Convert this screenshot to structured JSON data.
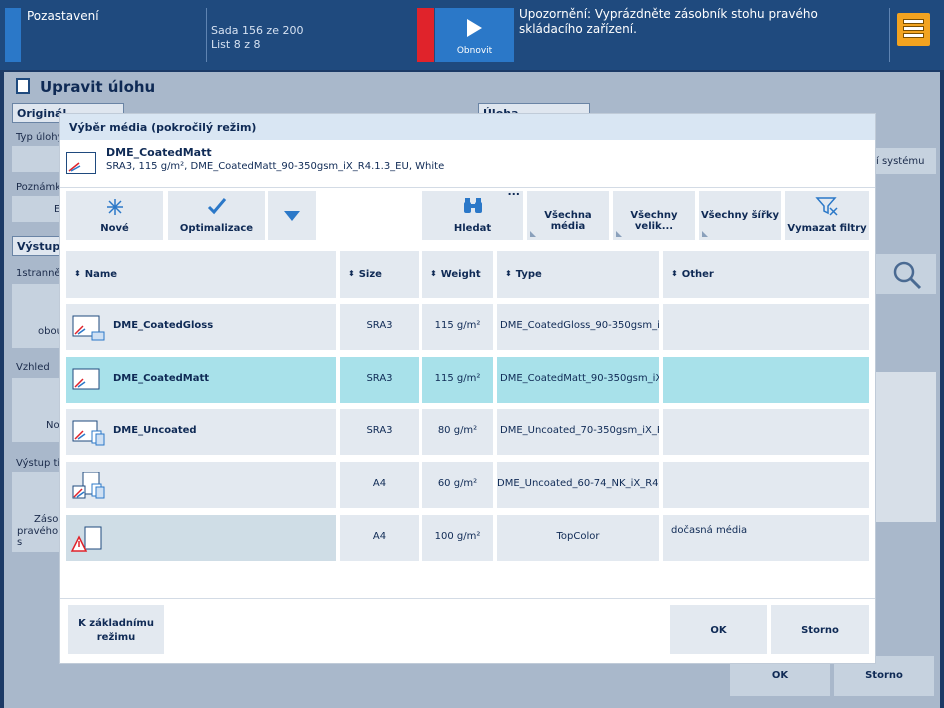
{
  "topbar": {
    "title": "Pozastavení",
    "set_line": "Sada 156 ze 200",
    "sheet_line": "List 8 z 8",
    "resume_label": "Obnovit",
    "warning": "Upozornění: Vyprázdněte zásobník stohu pravého skládacího zařízení."
  },
  "background": {
    "title": "Upravit úlohu",
    "tab_original": "Originál",
    "tab_job": "Úloha",
    "label_type": "Typ úlohy",
    "label_note": "Poznámka",
    "label_e": "E",
    "label_system": "í systému",
    "tab_output": "Výstup",
    "label_1side": "1stranně",
    "label_obou": "obou",
    "label_vzhled": "Vzhled",
    "label_no": "No",
    "label_vystup_tisk": "Výstup tis",
    "label_zasob": "Zásob",
    "label_praveho": "pravého s",
    "ok": "OK",
    "cancel": "Storno"
  },
  "modal": {
    "title": "Výběr média (pokročilý režim)",
    "selected_name": "DME_CoatedMatt",
    "selected_desc": "SRA3, 115 g/m², DME_CoatedMatt_90-350gsm_iX_R4.1.3_EU, White",
    "toolbar": {
      "new": "Nové",
      "optimize": "Optimalizace",
      "search": "Hledat",
      "more": "...",
      "all_media": "Všechna média",
      "all_sizes": "Všechny velik...",
      "all_widths": "Všechny šířky",
      "clear_filters": "Vymazat filtry"
    },
    "columns": {
      "name": "Name",
      "size": "Size",
      "weight": "Weight",
      "type": "Type",
      "other": "Other"
    },
    "rows": [
      {
        "name": "DME_CoatedGloss",
        "size": "SRA3",
        "weight": "115 g/m²",
        "type": "DME_CoatedGloss_90-350gsm_iX...",
        "other": ""
      },
      {
        "name": "DME_CoatedMatt",
        "size": "SRA3",
        "weight": "115 g/m²",
        "type": "DME_CoatedMatt_90-350gsm_iX_...",
        "other": ""
      },
      {
        "name": "DME_Uncoated",
        "size": "SRA3",
        "weight": "80 g/m²",
        "type": "DME_Uncoated_70-350gsm_iX_R4...",
        "other": ""
      },
      {
        "name": "",
        "size": "A4",
        "weight": "60 g/m²",
        "type": "DME_Uncoated_60-74_NK_iX_R4.5",
        "other": ""
      },
      {
        "name": "",
        "size": "A4",
        "weight": "100 g/m²",
        "type": "TopColor",
        "other": "dočasná média"
      }
    ],
    "basic_mode": "K základnímu režimu",
    "ok": "OK",
    "cancel": "Storno"
  },
  "colors": {
    "topbar": "#1f4a7e",
    "accent_blue": "#2b78c8",
    "alert_red": "#e0232b",
    "menu_orange": "#f2a320",
    "selected_row": "#a8e1ea"
  }
}
